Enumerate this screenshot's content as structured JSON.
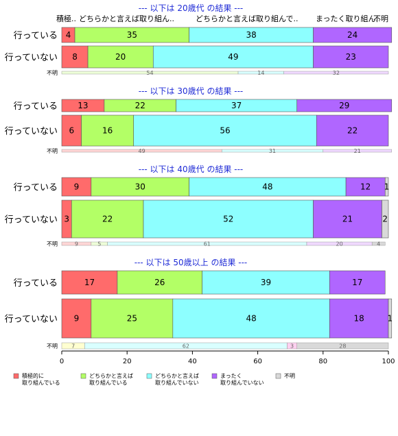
{
  "chart_data": {
    "type": "bar",
    "orientation": "horizontal",
    "stacked": true,
    "xlim": [
      0,
      100
    ],
    "xticks": [
      0,
      20,
      40,
      60,
      80,
      100
    ],
    "column_headers": [
      "積極..",
      "どちらかと言えば取り組ん..",
      "どちらかと言えば取り組んで..",
      "まったく取り組ん..",
      "不明"
    ],
    "categories_legend": [
      {
        "label_lines": [
          "積極的に",
          "取り組んでいる"
        ],
        "color": "#ff6b6b"
      },
      {
        "label_lines": [
          "どちらかと言えば",
          "取り組んでいる"
        ],
        "color": "#b3ff66"
      },
      {
        "label_lines": [
          "どちらかと言えば",
          "取り組んでいない"
        ],
        "color": "#8dffff"
      },
      {
        "label_lines": [
          "まったく",
          "取り組んでいない"
        ],
        "color": "#b066ff"
      },
      {
        "label_lines": [
          "不明"
        ],
        "color": "#d9d9d9"
      }
    ],
    "unknown_colors": [
      "#ffd6d6",
      "#eeffd9",
      "#d9ffff",
      "#f0d9ff",
      "#d9d9d9"
    ],
    "unknown_label": "不明",
    "panels": [
      {
        "title": "--- 以下は 20歳代 の結果 ---",
        "rows": [
          {
            "label": "行っている",
            "values": [
              4,
              35,
              38,
              24,
              0
            ],
            "labels": [
              "4",
              "35",
              "38",
              "24",
              ""
            ]
          },
          {
            "label": "行っていない",
            "values": [
              8,
              20,
              49,
              23,
              0
            ],
            "labels": [
              "8",
              "20",
              "49",
              "23",
              ""
            ]
          }
        ],
        "unknown": {
          "values": [
            0,
            54,
            14,
            32,
            0
          ],
          "labels": [
            "",
            "54",
            "14",
            "32",
            ""
          ]
        }
      },
      {
        "title": "--- 以下は 30歳代 の結果 ---",
        "rows": [
          {
            "label": "行っている",
            "values": [
              13,
              22,
              37,
              29,
              0
            ],
            "labels": [
              "13",
              "22",
              "37",
              "29",
              ""
            ]
          },
          {
            "label": "行っていない",
            "values": [
              6,
              16,
              56,
              22,
              0
            ],
            "labels": [
              "6",
              "16",
              "56",
              "22",
              ""
            ]
          }
        ],
        "unknown": {
          "values": [
            49,
            0,
            31,
            21,
            0
          ],
          "labels": [
            "49",
            "",
            "31",
            "21",
            ""
          ]
        }
      },
      {
        "title": "--- 以下は 40歳代 の結果 ---",
        "rows": [
          {
            "label": "行っている",
            "values": [
              9,
              30,
              48,
              12,
              1
            ],
            "labels": [
              "9",
              "30",
              "48",
              "12",
              "1"
            ]
          },
          {
            "label": "行っていない",
            "values": [
              3,
              22,
              52,
              21,
              2
            ],
            "labels": [
              "3",
              "22",
              "52",
              "21",
              "2"
            ]
          }
        ],
        "unknown": {
          "values": [
            9,
            5,
            61,
            20,
            4
          ],
          "labels": [
            "9",
            "5",
            "61",
            "20",
            "4"
          ]
        }
      },
      {
        "title": "--- 以下は 50歳以上 の結果 ---",
        "rows": [
          {
            "label": "行っている",
            "values": [
              17,
              26,
              39,
              17,
              0
            ],
            "labels": [
              "17",
              "26",
              "39",
              "17",
              ""
            ]
          },
          {
            "label": "行っていない",
            "values": [
              9,
              25,
              48,
              18,
              1
            ],
            "labels": [
              "9",
              "25",
              "48",
              "18",
              "1"
            ]
          }
        ],
        "unknown": {
          "values": [
            0,
            7,
            62,
            3,
            28
          ],
          "labels": [
            "",
            "7",
            "62",
            "3",
            "28"
          ],
          "colors": [
            "#ffd6d6",
            "#ffffd0",
            "#d9ffff",
            "#ffd0f0",
            "#d9d9d9"
          ]
        }
      }
    ]
  }
}
